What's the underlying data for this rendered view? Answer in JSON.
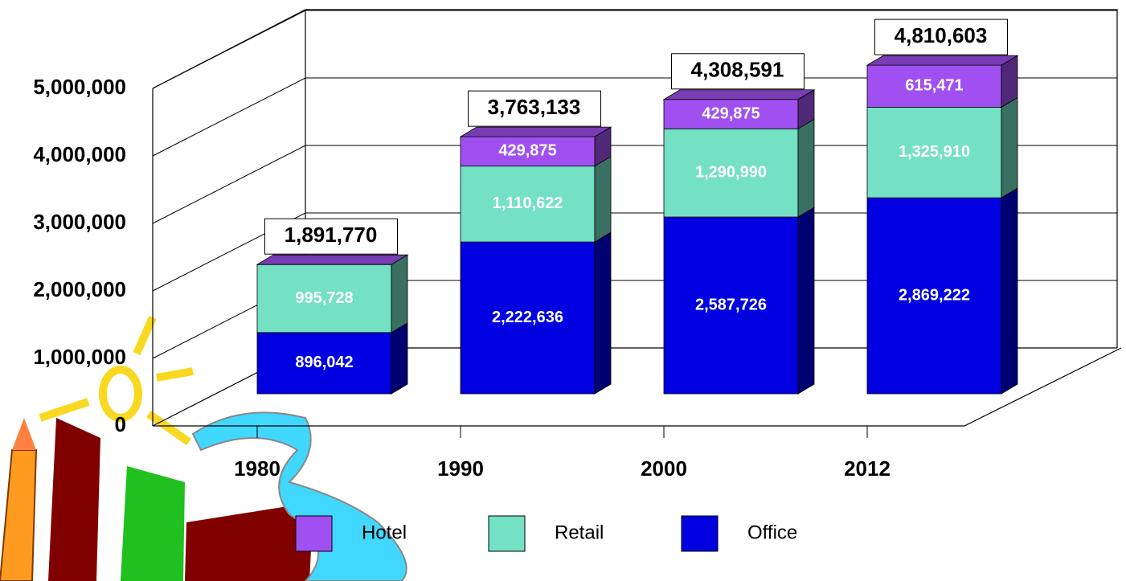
{
  "chart_data": {
    "type": "bar3d_stacked",
    "categories": [
      "1980",
      "1990",
      "2000",
      "2012"
    ],
    "series": [
      {
        "name": "Office",
        "color": "#0000e0",
        "values": [
          896042,
          2222636,
          2587726,
          2869222
        ],
        "value_labels": [
          "896,042",
          "2,222,636",
          "2,587,726",
          "2,869,222"
        ]
      },
      {
        "name": "Retail",
        "color": "#74e0c4",
        "values": [
          995728,
          1110622,
          1290990,
          1325910
        ],
        "value_labels": [
          "995,728",
          "1,110,622",
          "1,290,990",
          "1,325,910"
        ]
      },
      {
        "name": "Hotel",
        "color": "#a050f0",
        "values": [
          null,
          429875,
          429875,
          615471
        ],
        "value_labels": [
          null,
          "429,875",
          "429,875",
          "615,471"
        ]
      }
    ],
    "totals": [
      1891770,
      3763133,
      4308591,
      4810603
    ],
    "total_labels": [
      "1,891,770",
      "3,763,133",
      "4,308,591",
      "4,810,603"
    ],
    "ylim": [
      0,
      6000000
    ],
    "yticks": [
      0,
      {
        "value": 1000000,
        "label": "1,000,000"
      },
      {
        "value": 2000000,
        "label": "2,000,000"
      },
      {
        "value": 3000000,
        "label": "3,000,000"
      },
      {
        "value": 4000000,
        "label": "4,000,000"
      },
      {
        "value": 5000000,
        "label": "5,000,000"
      }
    ],
    "grid": true,
    "legend": "bottom"
  }
}
